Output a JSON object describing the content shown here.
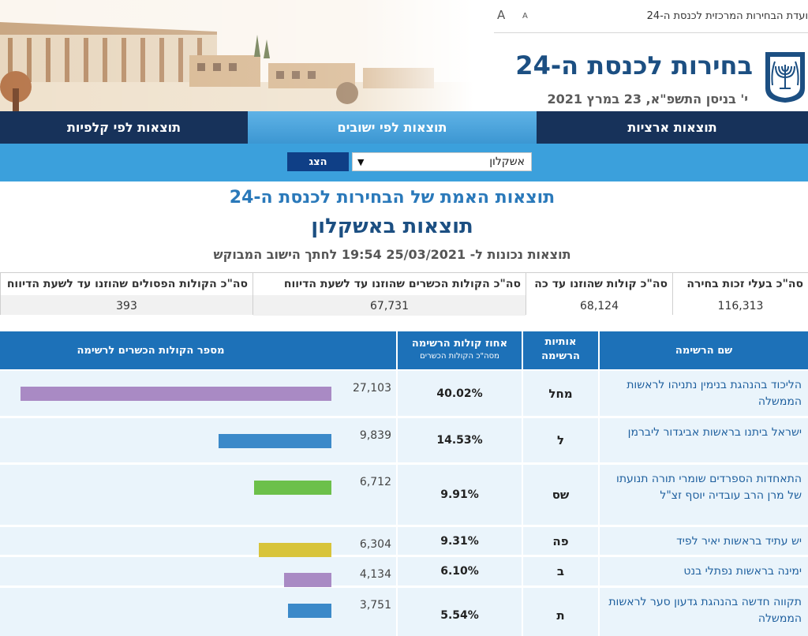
{
  "header": {
    "topbar_title": "ועדת הבחירות המרכזית לכנסת ה-24",
    "font_large": "A",
    "font_small": "A",
    "main_title": "בחירות לכנסת ה-24",
    "date_line": "י' בניסן התשפ\"א, 23 במרץ 2021"
  },
  "nav": {
    "tab_national": "תוצאות ארציות",
    "tab_town": "תוצאות לפי ישובים",
    "tab_ballot": "תוצאות לפי קלפיות"
  },
  "filter": {
    "selected_town": "אשקלון",
    "show_label": "הצג"
  },
  "titles": {
    "results_title": "תוצאות האמת של הבחירות לכנסת ה-24",
    "town_title": "תוצאות באשקלון",
    "updated_line": "תוצאות נכונות ל- 25/03/2021 19:54  לחתך הישוב המבוקש"
  },
  "summary": {
    "eligible_label": "סה\"כ בעלי זכות בחירה",
    "eligible_value": "116,313",
    "votes_label": "סה\"כ קולות שהוזנו עד כה",
    "votes_value": "68,124",
    "valid_label": "סה\"כ הקולות הכשרים שהוזנו עד לשעת הדיווח",
    "valid_value": "67,731",
    "invalid_label": "סה\"כ הקולות הפסולים שהוזנו עד לשעת הדיווח",
    "invalid_value": "393"
  },
  "table": {
    "col_name": "שם הרשימה",
    "col_letters_1": "אותיות",
    "col_letters_2": "הרשימה",
    "col_percent_1": "אחוז קולות הרשימה",
    "col_percent_2": "מסה\"כ הקולות הכשרים",
    "col_votes": "מספר הקולות הכשרים לרשימה",
    "rows": [
      {
        "name": "הליכוד בהנהגת בנימין נתניהו לראשות הממשלה",
        "letters": "מחל",
        "percent": "40.02%",
        "votes": "27,103",
        "votes_num": 27103,
        "color": "#a98ac4"
      },
      {
        "name": "ישראל ביתנו בראשות אביגדור ליברמן",
        "letters": "ל",
        "percent": "14.53%",
        "votes": "9,839",
        "votes_num": 9839,
        "color": "#3b89c9"
      },
      {
        "name": "התאחדות הספרדים שומרי תורה תנועתו של מרן הרב עובדיה יוסף זצ\"ל",
        "letters": "שס",
        "percent": "9.91%",
        "votes": "6,712",
        "votes_num": 6712,
        "color": "#6cc04a"
      },
      {
        "name": "יש עתיד בראשות יאיר לפיד",
        "letters": "פה",
        "percent": "9.31%",
        "votes": "6,304",
        "votes_num": 6304,
        "color": "#d8c43a"
      },
      {
        "name": "ימינה בראשות נפתלי בנט",
        "letters": "ב",
        "percent": "6.10%",
        "votes": "4,134",
        "votes_num": 4134,
        "color": "#a98ac4"
      },
      {
        "name": "תקווה חדשה בהנהגת גדעון סער לראשות הממשלה",
        "letters": "ת",
        "percent": "5.54%",
        "votes": "3,751",
        "votes_num": 3751,
        "color": "#3b89c9"
      }
    ]
  }
}
